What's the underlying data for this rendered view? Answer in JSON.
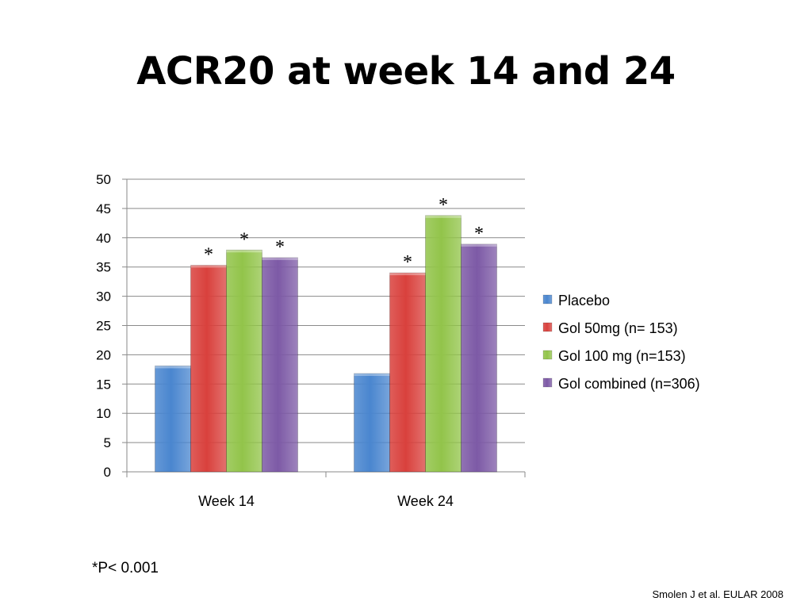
{
  "slide": {
    "title": "ACR20 at week 14 and 24",
    "footnote": "*P< 0.001",
    "citation": "Smolen J et al. EULAR 2008"
  },
  "chart_data": {
    "type": "bar",
    "categories": [
      "Week 14",
      "Week 24"
    ],
    "series": [
      {
        "name": "Placebo",
        "values": [
          18.1,
          16.8
        ],
        "color": "#4a86cf",
        "markers": [
          "",
          ""
        ]
      },
      {
        "name": "Gol 50mg (n= 153)",
        "values": [
          35.3,
          34.0
        ],
        "color": "#d9413d",
        "markers": [
          "*",
          "*"
        ]
      },
      {
        "name": "Gol 100 mg (n=153)",
        "values": [
          37.9,
          43.8
        ],
        "color": "#92c44a",
        "markers": [
          "*",
          "*"
        ]
      },
      {
        "name": "Gol combined (n=306)",
        "values": [
          36.6,
          38.9
        ],
        "color": "#7d5aa6",
        "markers": [
          "*",
          "*"
        ]
      }
    ],
    "ylim": [
      0,
      50
    ],
    "yticks": [
      0,
      5,
      10,
      15,
      20,
      25,
      30,
      35,
      40,
      45,
      50
    ],
    "grid": true,
    "legend_position": "right",
    "xlabel": "",
    "ylabel": ""
  }
}
